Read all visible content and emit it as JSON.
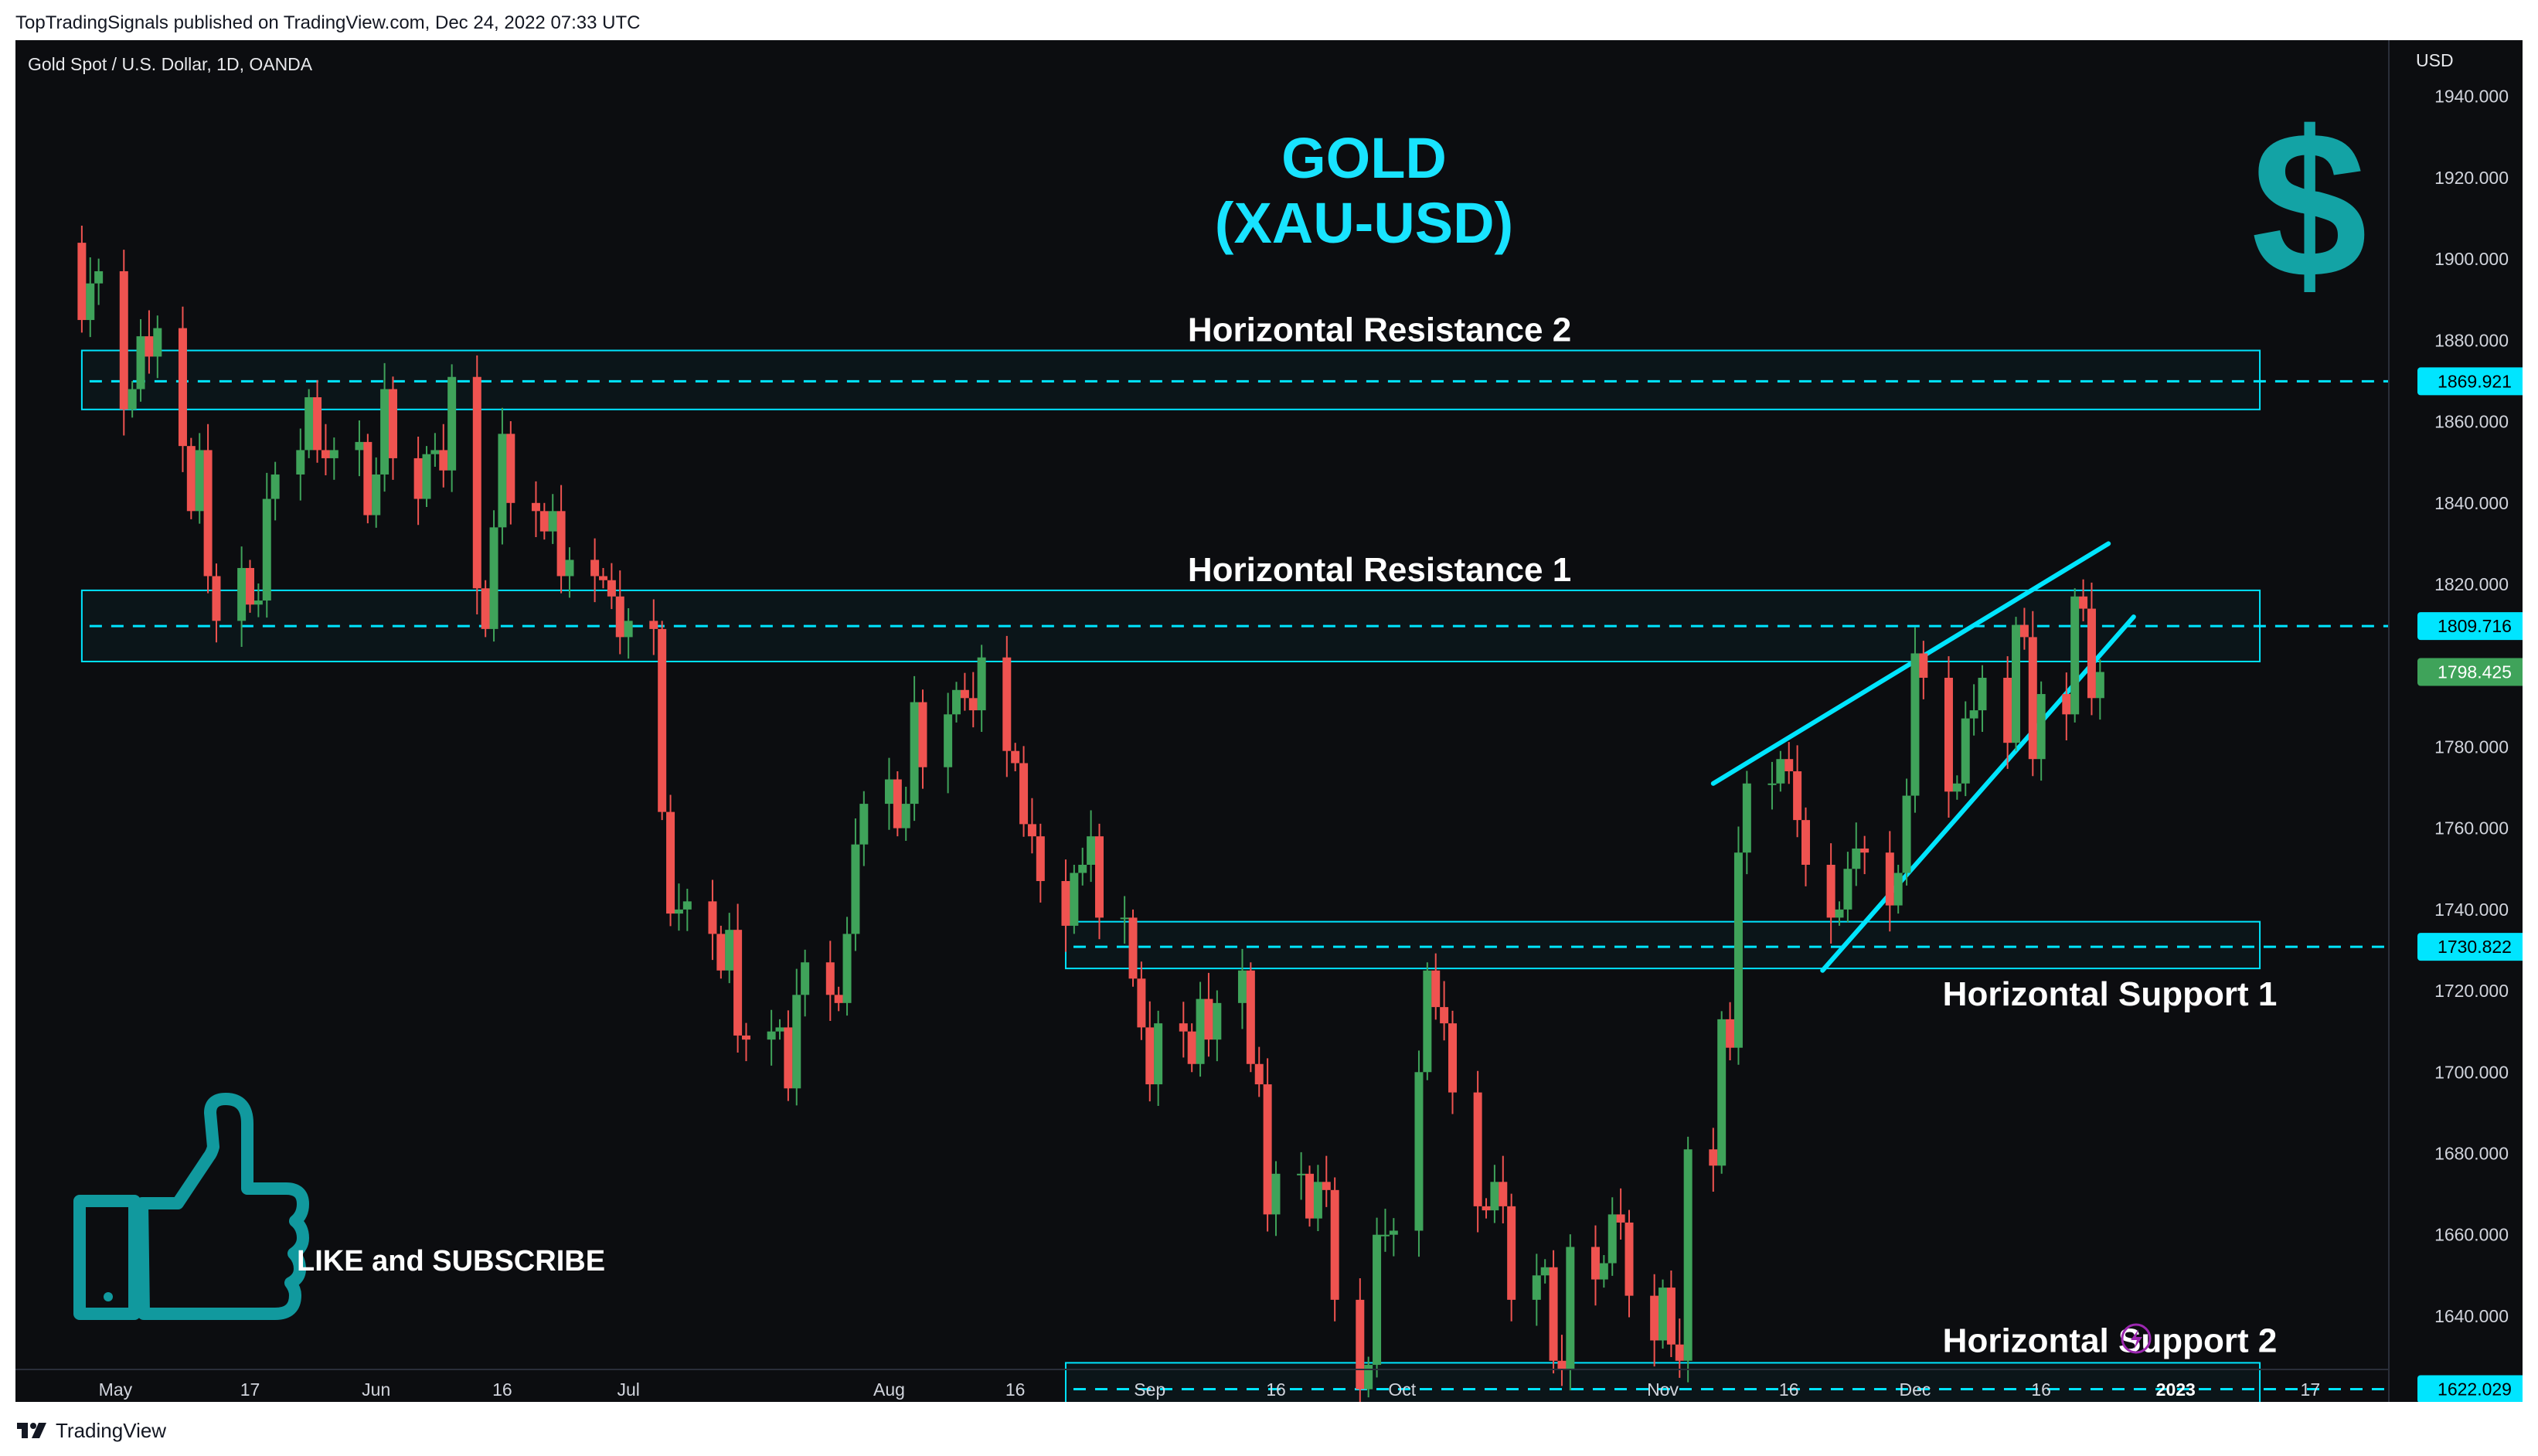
{
  "header": {
    "published": "TopTradingSignals published on TradingView.com, Dec 24, 2022 07:33 UTC"
  },
  "footer": {
    "brand": "TradingView"
  },
  "symbol_info": "Gold Spot / U.S. Dollar, 1D, OANDA",
  "colors": {
    "background": "#0c0d10",
    "up": "#26a69a",
    "up_body": "#3fa35a",
    "down": "#ef5350",
    "cyan": "#00e5ff",
    "title": "#18e3ff",
    "dollar": "#13a3a5",
    "thumb": "#11999e",
    "last_price_bg": "#3fa35a"
  },
  "icons": [
    "dollar-sign-icon",
    "thumbs-up-icon",
    "lightning-icon",
    "tradingview-logo-icon"
  ],
  "chart_data": {
    "type": "candlestick",
    "title": "GOLD",
    "subtitle": "(XAU-USD)",
    "currency": "USD",
    "y_ticks": [
      1940,
      1920,
      1900,
      1880,
      1860,
      1840,
      1820,
      1800,
      1780,
      1760,
      1740,
      1720,
      1700,
      1680,
      1660,
      1640
    ],
    "ylim": [
      1614,
      1951
    ],
    "x_start": "2022-04-26",
    "x_end": "2023-01-20",
    "x_ticks": [
      {
        "date": "2022-05-01",
        "label": "May"
      },
      {
        "date": "2022-05-17",
        "label": "17"
      },
      {
        "date": "2022-06-01",
        "label": "Jun"
      },
      {
        "date": "2022-06-16",
        "label": "16"
      },
      {
        "date": "2022-07-01",
        "label": "Jul"
      },
      {
        "date": "2022-08-01",
        "label": "Aug"
      },
      {
        "date": "2022-08-16",
        "label": "16"
      },
      {
        "date": "2022-09-01",
        "label": "Sep"
      },
      {
        "date": "2022-09-16",
        "label": "16"
      },
      {
        "date": "2022-10-01",
        "label": "Oct"
      },
      {
        "date": "2022-11-01",
        "label": "Nov"
      },
      {
        "date": "2022-11-16",
        "label": "16"
      },
      {
        "date": "2022-12-01",
        "label": "Dec"
      },
      {
        "date": "2022-12-16",
        "label": "16"
      },
      {
        "date": "2023-01-01",
        "label": "2023"
      },
      {
        "date": "2023-01-17",
        "label": "17"
      }
    ],
    "closes": [
      [
        "2022-04-26",
        1904
      ],
      [
        "2022-04-27",
        1885
      ],
      [
        "2022-04-28",
        1894
      ],
      [
        "2022-04-29",
        1897
      ],
      [
        "2022-05-02",
        1863
      ],
      [
        "2022-05-03",
        1868
      ],
      [
        "2022-05-04",
        1881
      ],
      [
        "2022-05-05",
        1876
      ],
      [
        "2022-05-06",
        1883
      ],
      [
        "2022-05-09",
        1854
      ],
      [
        "2022-05-10",
        1838
      ],
      [
        "2022-05-11",
        1853
      ],
      [
        "2022-05-12",
        1822
      ],
      [
        "2022-05-13",
        1811
      ],
      [
        "2022-05-16",
        1824
      ],
      [
        "2022-05-17",
        1815
      ],
      [
        "2022-05-18",
        1816
      ],
      [
        "2022-05-19",
        1841
      ],
      [
        "2022-05-20",
        1847
      ],
      [
        "2022-05-23",
        1853
      ],
      [
        "2022-05-24",
        1866
      ],
      [
        "2022-05-25",
        1853
      ],
      [
        "2022-05-26",
        1851
      ],
      [
        "2022-05-27",
        1853
      ],
      [
        "2022-05-30",
        1855
      ],
      [
        "2022-05-31",
        1837
      ],
      [
        "2022-06-01",
        1847
      ],
      [
        "2022-06-02",
        1868
      ],
      [
        "2022-06-03",
        1851
      ],
      [
        "2022-06-06",
        1841
      ],
      [
        "2022-06-07",
        1852
      ],
      [
        "2022-06-08",
        1853
      ],
      [
        "2022-06-09",
        1848
      ],
      [
        "2022-06-10",
        1871
      ],
      [
        "2022-06-13",
        1819
      ],
      [
        "2022-06-14",
        1809
      ],
      [
        "2022-06-15",
        1834
      ],
      [
        "2022-06-16",
        1857
      ],
      [
        "2022-06-17",
        1840
      ],
      [
        "2022-06-20",
        1838
      ],
      [
        "2022-06-21",
        1833
      ],
      [
        "2022-06-22",
        1838
      ],
      [
        "2022-06-23",
        1822
      ],
      [
        "2022-06-24",
        1826
      ],
      [
        "2022-06-27",
        1822
      ],
      [
        "2022-06-28",
        1821
      ],
      [
        "2022-06-29",
        1817
      ],
      [
        "2022-06-30",
        1807
      ],
      [
        "2022-07-01",
        1811
      ],
      [
        "2022-07-04",
        1809
      ],
      [
        "2022-07-05",
        1764
      ],
      [
        "2022-07-06",
        1739
      ],
      [
        "2022-07-07",
        1740
      ],
      [
        "2022-07-08",
        1742
      ],
      [
        "2022-07-11",
        1734
      ],
      [
        "2022-07-12",
        1725
      ],
      [
        "2022-07-13",
        1735
      ],
      [
        "2022-07-14",
        1709
      ],
      [
        "2022-07-15",
        1708
      ],
      [
        "2022-07-18",
        1710
      ],
      [
        "2022-07-19",
        1711
      ],
      [
        "2022-07-20",
        1696
      ],
      [
        "2022-07-21",
        1719
      ],
      [
        "2022-07-22",
        1727
      ],
      [
        "2022-07-25",
        1719
      ],
      [
        "2022-07-26",
        1717
      ],
      [
        "2022-07-27",
        1734
      ],
      [
        "2022-07-28",
        1756
      ],
      [
        "2022-07-29",
        1766
      ],
      [
        "2022-08-01",
        1772
      ],
      [
        "2022-08-02",
        1760
      ],
      [
        "2022-08-03",
        1766
      ],
      [
        "2022-08-04",
        1791
      ],
      [
        "2022-08-05",
        1775
      ],
      [
        "2022-08-08",
        1788
      ],
      [
        "2022-08-09",
        1794
      ],
      [
        "2022-08-10",
        1792
      ],
      [
        "2022-08-11",
        1789
      ],
      [
        "2022-08-12",
        1802
      ],
      [
        "2022-08-15",
        1779
      ],
      [
        "2022-08-16",
        1776
      ],
      [
        "2022-08-17",
        1761
      ],
      [
        "2022-08-18",
        1758
      ],
      [
        "2022-08-19",
        1747
      ],
      [
        "2022-08-22",
        1736
      ],
      [
        "2022-08-23",
        1749
      ],
      [
        "2022-08-24",
        1751
      ],
      [
        "2022-08-25",
        1758
      ],
      [
        "2022-08-26",
        1738
      ],
      [
        "2022-08-29",
        1738
      ],
      [
        "2022-08-30",
        1723
      ],
      [
        "2022-08-31",
        1711
      ],
      [
        "2022-09-01",
        1697
      ],
      [
        "2022-09-02",
        1712
      ],
      [
        "2022-09-05",
        1710
      ],
      [
        "2022-09-06",
        1702
      ],
      [
        "2022-09-07",
        1718
      ],
      [
        "2022-09-08",
        1708
      ],
      [
        "2022-09-09",
        1717
      ],
      [
        "2022-09-12",
        1725
      ],
      [
        "2022-09-13",
        1702
      ],
      [
        "2022-09-14",
        1697
      ],
      [
        "2022-09-15",
        1665
      ],
      [
        "2022-09-16",
        1675
      ],
      [
        "2022-09-19",
        1675
      ],
      [
        "2022-09-20",
        1664
      ],
      [
        "2022-09-21",
        1673
      ],
      [
        "2022-09-22",
        1671
      ],
      [
        "2022-09-23",
        1644
      ],
      [
        "2022-09-26",
        1622
      ],
      [
        "2022-09-27",
        1628
      ],
      [
        "2022-09-28",
        1660
      ],
      [
        "2022-09-29",
        1660
      ],
      [
        "2022-09-30",
        1661
      ],
      [
        "2022-10-03",
        1700
      ],
      [
        "2022-10-04",
        1725
      ],
      [
        "2022-10-05",
        1716
      ],
      [
        "2022-10-06",
        1712
      ],
      [
        "2022-10-07",
        1695
      ],
      [
        "2022-10-10",
        1667
      ],
      [
        "2022-10-11",
        1666
      ],
      [
        "2022-10-12",
        1673
      ],
      [
        "2022-10-13",
        1667
      ],
      [
        "2022-10-14",
        1644
      ],
      [
        "2022-10-17",
        1650
      ],
      [
        "2022-10-18",
        1652
      ],
      [
        "2022-10-19",
        1629
      ],
      [
        "2022-10-20",
        1627
      ],
      [
        "2022-10-21",
        1657
      ],
      [
        "2022-10-24",
        1649
      ],
      [
        "2022-10-25",
        1653
      ],
      [
        "2022-10-26",
        1665
      ],
      [
        "2022-10-27",
        1663
      ],
      [
        "2022-10-28",
        1645
      ],
      [
        "2022-10-31",
        1634
      ],
      [
        "2022-11-01",
        1647
      ],
      [
        "2022-11-02",
        1633
      ],
      [
        "2022-11-03",
        1629
      ],
      [
        "2022-11-04",
        1681
      ],
      [
        "2022-11-07",
        1677
      ],
      [
        "2022-11-08",
        1713
      ],
      [
        "2022-11-09",
        1706
      ],
      [
        "2022-11-10",
        1754
      ],
      [
        "2022-11-11",
        1771
      ],
      [
        "2022-11-14",
        1771
      ],
      [
        "2022-11-15",
        1777
      ],
      [
        "2022-11-16",
        1774
      ],
      [
        "2022-11-17",
        1762
      ],
      [
        "2022-11-18",
        1751
      ],
      [
        "2022-11-21",
        1738
      ],
      [
        "2022-11-22",
        1740
      ],
      [
        "2022-11-23",
        1750
      ],
      [
        "2022-11-24",
        1755
      ],
      [
        "2022-11-25",
        1754
      ],
      [
        "2022-11-28",
        1741
      ],
      [
        "2022-11-29",
        1749
      ],
      [
        "2022-11-30",
        1768
      ],
      [
        "2022-12-01",
        1803
      ],
      [
        "2022-12-02",
        1797
      ],
      [
        "2022-12-05",
        1769
      ],
      [
        "2022-12-06",
        1771
      ],
      [
        "2022-12-07",
        1787
      ],
      [
        "2022-12-08",
        1789
      ],
      [
        "2022-12-09",
        1797
      ],
      [
        "2022-12-12",
        1781
      ],
      [
        "2022-12-13",
        1810
      ],
      [
        "2022-12-14",
        1807
      ],
      [
        "2022-12-15",
        1777
      ],
      [
        "2022-12-16",
        1793
      ],
      [
        "2022-12-19",
        1788
      ],
      [
        "2022-12-20",
        1817
      ],
      [
        "2022-12-21",
        1814
      ],
      [
        "2022-12-22",
        1792
      ],
      [
        "2022-12-23",
        1798.425
      ]
    ],
    "zones": [
      {
        "id": "resistance-2",
        "label": "Horizontal Resistance 2",
        "top": 1877.5,
        "bottom": 1863,
        "level": 1869.921,
        "level_label": "1869.921",
        "x_start": "2022-04-27"
      },
      {
        "id": "resistance-1",
        "label": "Horizontal Resistance 1",
        "top": 1818.5,
        "bottom": 1801,
        "level": 1809.716,
        "level_label": "1809.716",
        "x_start": "2022-04-27"
      },
      {
        "id": "support-1",
        "label": "Horizontal Support 1",
        "top": 1737,
        "bottom": 1725.5,
        "level": 1730.822,
        "level_label": "1730.822",
        "x_start": "2022-08-22"
      },
      {
        "id": "support-2",
        "label": "Horizontal Support 2",
        "top": 1628.5,
        "bottom": 1617.5,
        "level": 1622.029,
        "level_label": "1622.029",
        "x_start": "2022-08-22"
      }
    ],
    "zone_end": "2023-01-11",
    "trendlines": [
      {
        "id": "upper",
        "from": [
          "2022-11-07",
          1771
        ],
        "to": [
          "2022-12-24",
          1830
        ]
      },
      {
        "id": "lower",
        "from": [
          "2022-11-20",
          1725
        ],
        "to": [
          "2022-12-27",
          1812
        ]
      }
    ],
    "last_price": 1798.425,
    "last_price_label": "1798.425"
  },
  "annotations": {
    "like_subscribe": "LIKE and SUBSCRIBE"
  }
}
